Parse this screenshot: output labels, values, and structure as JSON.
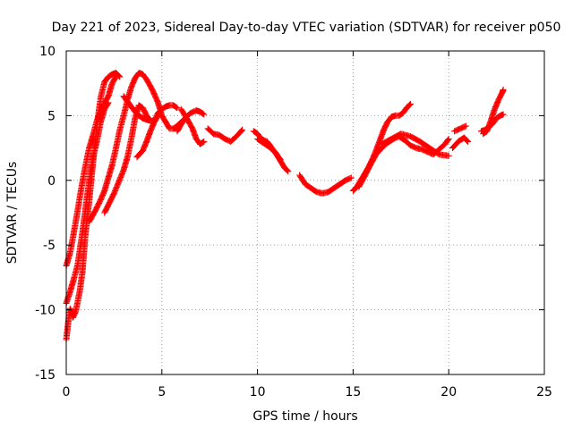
{
  "chart_data": {
    "type": "scatter",
    "title": "Day 221 of 2023, Sidereal Day-to-day VTEC variation (SDTVAR) for receiver p050",
    "xlabel": "GPS time / hours",
    "ylabel": "SDTVAR / TECUs",
    "xlim": [
      0,
      25
    ],
    "ylim": [
      -15,
      10
    ],
    "xticks": [
      0,
      5,
      10,
      15,
      20,
      25
    ],
    "yticks": [
      -15,
      -10,
      -5,
      0,
      5,
      10
    ],
    "grid": true,
    "marker": "+",
    "series": [
      {
        "name": "SDTVAR",
        "color": "#ff0000",
        "tracks": [
          [
            [
              0.0,
              -12.3
            ],
            [
              0.1,
              -11.0
            ],
            [
              0.2,
              -9.9
            ],
            [
              0.35,
              -10.6
            ],
            [
              0.5,
              -10.1
            ],
            [
              0.7,
              -8.6
            ],
            [
              0.85,
              -7.0
            ],
            [
              1.0,
              -4.2
            ],
            [
              1.2,
              -1.6
            ],
            [
              1.4,
              1.4
            ],
            [
              1.6,
              4.2
            ],
            [
              1.8,
              6.4
            ],
            [
              2.0,
              7.6
            ],
            [
              2.2,
              8.0
            ],
            [
              2.4,
              8.2
            ],
            [
              2.6,
              8.3
            ],
            [
              2.8,
              8.0
            ]
          ],
          [
            [
              0.0,
              -6.6
            ],
            [
              0.2,
              -5.6
            ],
            [
              0.4,
              -4.0
            ],
            [
              0.6,
              -2.3
            ],
            [
              0.8,
              -0.5
            ],
            [
              1.0,
              1.1
            ],
            [
              1.2,
              2.5
            ],
            [
              1.4,
              3.5
            ],
            [
              1.6,
              4.6
            ],
            [
              1.8,
              5.3
            ],
            [
              2.0,
              6.0
            ],
            [
              2.2,
              6.5
            ],
            [
              2.4,
              7.5
            ],
            [
              2.6,
              8.0
            ]
          ],
          [
            [
              0.0,
              -9.5
            ],
            [
              0.2,
              -8.6
            ],
            [
              0.4,
              -7.6
            ],
            [
              0.6,
              -6.5
            ],
            [
              0.8,
              -4.5
            ],
            [
              1.0,
              -2.3
            ],
            [
              1.2,
              0.0
            ],
            [
              1.4,
              1.8
            ],
            [
              1.6,
              3.0
            ],
            [
              1.8,
              4.5
            ],
            [
              2.0,
              5.5
            ],
            [
              2.2,
              6.0
            ]
          ],
          [
            [
              1.2,
              -3.2
            ],
            [
              1.5,
              -2.4
            ],
            [
              1.8,
              -1.5
            ],
            [
              2.0,
              -0.8
            ],
            [
              2.2,
              0.2
            ],
            [
              2.4,
              1.2
            ],
            [
              2.6,
              2.5
            ],
            [
              2.8,
              3.9
            ],
            [
              3.0,
              5.0
            ],
            [
              3.2,
              6.2
            ],
            [
              3.4,
              7.2
            ],
            [
              3.6,
              7.9
            ],
            [
              3.8,
              8.3
            ],
            [
              4.0,
              8.2
            ],
            [
              4.2,
              7.8
            ],
            [
              4.5,
              7.0
            ],
            [
              4.8,
              6.0
            ],
            [
              5.0,
              5.0
            ],
            [
              5.2,
              4.5
            ],
            [
              5.4,
              4.0
            ],
            [
              5.6,
              4.0
            ],
            [
              5.8,
              4.2
            ],
            [
              6.0,
              4.5
            ]
          ],
          [
            [
              2.0,
              -2.5
            ],
            [
              2.5,
              -1.0
            ],
            [
              3.0,
              0.8
            ],
            [
              3.2,
              1.8
            ],
            [
              3.4,
              3.2
            ],
            [
              3.6,
              4.8
            ],
            [
              3.8,
              5.8
            ],
            [
              4.0,
              5.6
            ],
            [
              4.2,
              5.0
            ],
            [
              4.4,
              4.6
            ],
            [
              4.6,
              4.6
            ],
            [
              4.8,
              5.2
            ],
            [
              5.0,
              5.5
            ],
            [
              5.2,
              5.7
            ],
            [
              5.4,
              5.8
            ],
            [
              5.6,
              5.8
            ],
            [
              5.8,
              5.6
            ]
          ],
          [
            [
              3.0,
              6.5
            ],
            [
              3.2,
              6.1
            ],
            [
              3.4,
              5.7
            ],
            [
              3.6,
              5.3
            ],
            [
              3.8,
              5.0
            ],
            [
              4.0,
              4.8
            ],
            [
              4.2,
              4.7
            ],
            [
              4.4,
              4.6
            ]
          ],
          [
            [
              3.7,
              1.8
            ],
            [
              4.0,
              2.3
            ],
            [
              4.2,
              3.0
            ],
            [
              4.4,
              3.8
            ],
            [
              4.6,
              4.5
            ],
            [
              4.8,
              5.0
            ]
          ],
          [
            [
              5.8,
              3.8
            ],
            [
              6.0,
              4.3
            ],
            [
              6.2,
              4.8
            ],
            [
              6.5,
              5.2
            ],
            [
              6.8,
              5.4
            ],
            [
              7.0,
              5.3
            ],
            [
              7.2,
              5.1
            ]
          ],
          [
            [
              6.0,
              5.5
            ],
            [
              6.3,
              4.8
            ],
            [
              6.6,
              4.0
            ],
            [
              6.8,
              3.2
            ],
            [
              7.0,
              2.8
            ],
            [
              7.2,
              3.0
            ]
          ],
          [
            [
              7.4,
              4.0
            ],
            [
              7.7,
              3.6
            ],
            [
              8.0,
              3.5
            ],
            [
              8.3,
              3.2
            ],
            [
              8.6,
              3.0
            ],
            [
              8.9,
              3.4
            ],
            [
              9.2,
              3.9
            ]
          ],
          [
            [
              9.8,
              3.8
            ],
            [
              10.0,
              3.6
            ],
            [
              10.2,
              3.2
            ],
            [
              10.5,
              3.0
            ],
            [
              10.8,
              2.4
            ],
            [
              11.0,
              2.0
            ],
            [
              11.2,
              1.5
            ],
            [
              11.4,
              1.0
            ],
            [
              11.6,
              0.7
            ]
          ],
          [
            [
              10.0,
              3.2
            ],
            [
              10.3,
              2.9
            ],
            [
              10.6,
              2.6
            ],
            [
              10.9,
              2.2
            ],
            [
              11.2,
              1.6
            ]
          ],
          [
            [
              12.2,
              0.4
            ],
            [
              12.5,
              -0.3
            ],
            [
              12.8,
              -0.6
            ],
            [
              13.1,
              -0.9
            ],
            [
              13.4,
              -1.0
            ],
            [
              13.7,
              -0.9
            ],
            [
              14.0,
              -0.6
            ],
            [
              14.3,
              -0.3
            ],
            [
              14.6,
              0.0
            ],
            [
              14.9,
              0.2
            ]
          ],
          [
            [
              15.0,
              -0.8
            ],
            [
              15.2,
              -0.5
            ],
            [
              15.4,
              0.0
            ],
            [
              15.6,
              0.5
            ],
            [
              15.8,
              1.0
            ],
            [
              16.0,
              1.6
            ],
            [
              16.2,
              2.3
            ],
            [
              16.4,
              3.1
            ],
            [
              16.6,
              3.9
            ],
            [
              16.8,
              4.5
            ],
            [
              17.0,
              4.9
            ],
            [
              17.2,
              5.0
            ],
            [
              17.4,
              5.0
            ],
            [
              17.6,
              5.2
            ],
            [
              17.8,
              5.6
            ],
            [
              18.0,
              5.9
            ]
          ],
          [
            [
              15.3,
              -0.5
            ],
            [
              15.6,
              0.3
            ],
            [
              15.9,
              1.2
            ],
            [
              16.2,
              2.0
            ],
            [
              16.5,
              2.5
            ],
            [
              16.8,
              2.9
            ],
            [
              17.1,
              3.2
            ],
            [
              17.4,
              3.4
            ],
            [
              17.7,
              3.1
            ],
            [
              18.0,
              2.7
            ],
            [
              18.3,
              2.5
            ],
            [
              18.6,
              2.4
            ],
            [
              18.9,
              2.2
            ],
            [
              19.2,
              2.0
            ],
            [
              19.5,
              2.4
            ],
            [
              19.8,
              2.8
            ],
            [
              20.0,
              3.2
            ]
          ],
          [
            [
              16.5,
              2.8
            ],
            [
              17.0,
              3.2
            ],
            [
              17.5,
              3.6
            ],
            [
              18.0,
              3.4
            ],
            [
              18.5,
              3.0
            ],
            [
              19.0,
              2.5
            ],
            [
              19.5,
              2.0
            ],
            [
              20.0,
              1.9
            ]
          ],
          [
            [
              20.2,
              2.5
            ],
            [
              20.5,
              3.0
            ],
            [
              20.8,
              3.3
            ],
            [
              21.0,
              3.0
            ]
          ],
          [
            [
              20.3,
              3.8
            ],
            [
              20.6,
              4.0
            ],
            [
              20.9,
              4.2
            ]
          ],
          [
            [
              21.7,
              3.8
            ],
            [
              21.9,
              3.9
            ],
            [
              22.1,
              4.1
            ],
            [
              22.3,
              4.4
            ],
            [
              22.5,
              4.8
            ],
            [
              22.7,
              5.0
            ],
            [
              22.85,
              5.1
            ]
          ],
          [
            [
              21.8,
              3.6
            ],
            [
              22.0,
              3.8
            ],
            [
              22.2,
              4.6
            ],
            [
              22.4,
              5.5
            ],
            [
              22.6,
              6.2
            ],
            [
              22.8,
              6.8
            ],
            [
              22.85,
              7.0
            ]
          ]
        ]
      }
    ]
  }
}
